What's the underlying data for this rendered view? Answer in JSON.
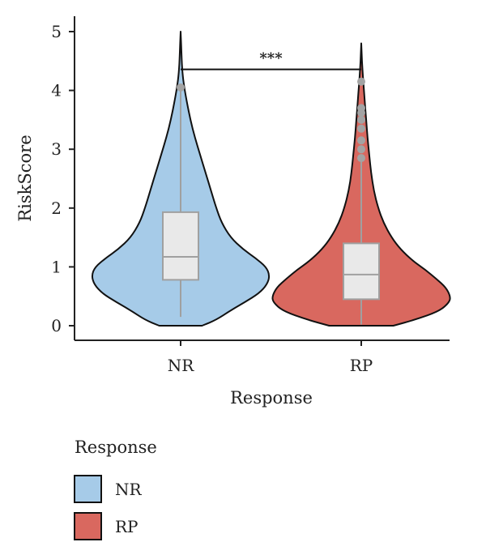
{
  "chart_data": {
    "type": "violin",
    "xlabel": "Response",
    "ylabel": "RiskScore",
    "ylim": [
      0,
      5
    ],
    "yticks": [
      0,
      1,
      2,
      3,
      4,
      5
    ],
    "categories": [
      "NR",
      "RP"
    ],
    "grid": false,
    "significance": {
      "between": [
        "NR",
        "RP"
      ],
      "label": "***",
      "y": 4.55
    },
    "legend": {
      "title": "Response",
      "position": "bottom-left",
      "items": [
        {
          "label": "NR",
          "color": "#a6cbe8"
        },
        {
          "label": "RP",
          "color": "#d9685f"
        }
      ]
    },
    "series": [
      {
        "category": "NR",
        "color": "#a6cbe8",
        "min": 0.15,
        "q1": 0.78,
        "median": 1.17,
        "q3": 1.93,
        "max": 4.05,
        "outliers": [
          4.05
        ],
        "density": [
          [
            0.0,
            0.24
          ],
          [
            0.1,
            0.4
          ],
          [
            0.25,
            0.55
          ],
          [
            0.4,
            0.72
          ],
          [
            0.55,
            0.88
          ],
          [
            0.7,
            0.97
          ],
          [
            0.85,
            1.0
          ],
          [
            1.0,
            0.96
          ],
          [
            1.15,
            0.84
          ],
          [
            1.3,
            0.7
          ],
          [
            1.5,
            0.56
          ],
          [
            1.75,
            0.46
          ],
          [
            2.0,
            0.4
          ],
          [
            2.3,
            0.34
          ],
          [
            2.6,
            0.28
          ],
          [
            2.9,
            0.22
          ],
          [
            3.2,
            0.16
          ],
          [
            3.5,
            0.11
          ],
          [
            3.8,
            0.07
          ],
          [
            4.05,
            0.04
          ],
          [
            4.3,
            0.02
          ],
          [
            4.6,
            0.01
          ],
          [
            5.0,
            0.0
          ]
        ]
      },
      {
        "category": "RP",
        "color": "#d9685f",
        "min": 0.02,
        "q1": 0.45,
        "median": 0.87,
        "q3": 1.4,
        "max": 2.85,
        "outliers": [
          2.85,
          3.0,
          3.15,
          3.35,
          3.5,
          3.62,
          3.7,
          4.15
        ],
        "density": [
          [
            0.0,
            0.36
          ],
          [
            0.1,
            0.6
          ],
          [
            0.25,
            0.88
          ],
          [
            0.4,
            0.99
          ],
          [
            0.5,
            1.0
          ],
          [
            0.65,
            0.95
          ],
          [
            0.8,
            0.84
          ],
          [
            0.95,
            0.72
          ],
          [
            1.1,
            0.58
          ],
          [
            1.3,
            0.44
          ],
          [
            1.5,
            0.34
          ],
          [
            1.75,
            0.25
          ],
          [
            2.0,
            0.19
          ],
          [
            2.3,
            0.14
          ],
          [
            2.6,
            0.11
          ],
          [
            2.9,
            0.09
          ],
          [
            3.2,
            0.07
          ],
          [
            3.5,
            0.055
          ],
          [
            3.8,
            0.04
          ],
          [
            4.1,
            0.025
          ],
          [
            4.4,
            0.012
          ],
          [
            4.6,
            0.005
          ],
          [
            4.8,
            0.0
          ]
        ]
      }
    ]
  }
}
